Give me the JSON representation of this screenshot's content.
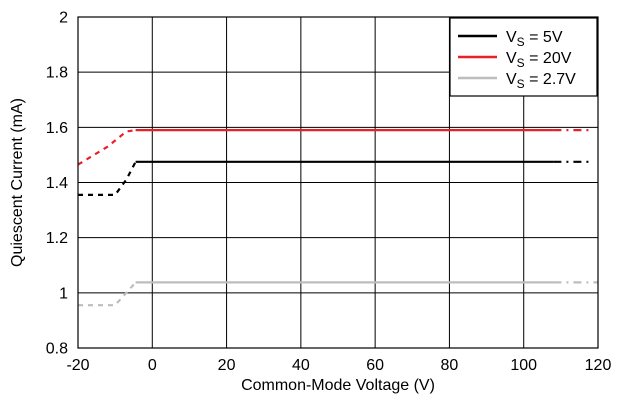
{
  "chart_data": {
    "type": "line",
    "title": "",
    "xlabel": "Common-Mode Voltage (V)",
    "ylabel": "Quiescent Current (mA)",
    "xlim": [
      -20,
      120
    ],
    "ylim": [
      0.8,
      2
    ],
    "x_ticks": [
      "-20",
      "0",
      "20",
      "40",
      "60",
      "80",
      "100",
      "120"
    ],
    "y_ticks": [
      "0.8",
      "1",
      "1.2",
      "1.4",
      "1.6",
      "1.8",
      "2"
    ],
    "grid": true,
    "legend_position": "top-right",
    "series": [
      {
        "name_main": "V",
        "name_sub": "S",
        "name_rest": " = 5V",
        "color": "#000000",
        "solid": [
          [
            -4.5,
            1.475
          ],
          [
            108,
            1.475
          ]
        ],
        "dashed": [
          [
            -20,
            1.355
          ],
          [
            -10,
            1.355
          ],
          [
            -7,
            1.41
          ],
          [
            -4.5,
            1.475
          ]
        ],
        "dashed_end": [
          [
            108,
            1.475
          ],
          [
            118,
            1.475
          ]
        ]
      },
      {
        "name_main": "V",
        "name_sub": "S",
        "name_rest": " = 20V",
        "color": "#e8202a",
        "solid": [
          [
            -4.5,
            1.59
          ],
          [
            108,
            1.59
          ]
        ],
        "dashed": [
          [
            -20,
            1.465
          ],
          [
            -12,
            1.53
          ],
          [
            -7,
            1.585
          ],
          [
            -4.5,
            1.59
          ]
        ],
        "dashed_end": [
          [
            108,
            1.59
          ],
          [
            118,
            1.59
          ]
        ]
      },
      {
        "name_main": "V",
        "name_sub": "S",
        "name_rest": " = 2.7V",
        "color": "#bdbdbd",
        "solid": [
          [
            -4.5,
            1.038
          ],
          [
            108,
            1.038
          ]
        ],
        "dashed": [
          [
            -20,
            0.955
          ],
          [
            -10,
            0.955
          ],
          [
            -7,
            1.0
          ],
          [
            -4.5,
            1.038
          ]
        ],
        "dashed_end": [
          [
            108,
            1.038
          ],
          [
            120,
            1.038
          ]
        ]
      }
    ]
  }
}
